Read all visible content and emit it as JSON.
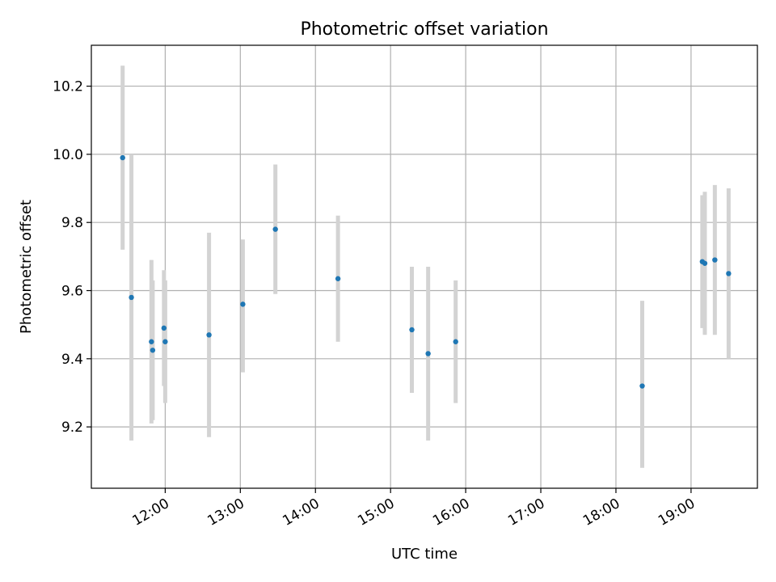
{
  "chart_data": {
    "type": "scatter",
    "title": "Photometric offset variation",
    "xlabel": "UTC time",
    "ylabel": "Photometric offset",
    "x_unit": "UTC time of day",
    "xlim": [
      "11:01",
      "19:53"
    ],
    "ylim": [
      9.02,
      10.32
    ],
    "x_ticks": [
      "12:00",
      "13:00",
      "14:00",
      "15:00",
      "16:00",
      "17:00",
      "18:00",
      "19:00"
    ],
    "y_ticks": [
      9.2,
      9.4,
      9.6,
      9.8,
      10.0,
      10.2
    ],
    "y_tick_labels": [
      "9.2",
      "9.4",
      "9.6",
      "9.8",
      "10.0",
      "10.2"
    ],
    "grid": true,
    "x_tick_rotation": "slanted",
    "colors": {
      "marker": "#1f77b4",
      "error_bar": "#d3d3d3"
    },
    "series": [
      {
        "points": [
          {
            "x": "11:26",
            "y": 9.99,
            "err_low": 9.72,
            "err_high": 10.26
          },
          {
            "x": "11:33",
            "y": 9.58,
            "err_low": 9.16,
            "err_high": 10.0
          },
          {
            "x": "11:49",
            "y": 9.45,
            "err_low": 9.21,
            "err_high": 9.69
          },
          {
            "x": "11:50",
            "y": 9.425,
            "err_low": 9.22,
            "err_high": 9.63
          },
          {
            "x": "11:59",
            "y": 9.49,
            "err_low": 9.32,
            "err_high": 9.66
          },
          {
            "x": "12:00",
            "y": 9.45,
            "err_low": 9.27,
            "err_high": 9.63
          },
          {
            "x": "12:35",
            "y": 9.47,
            "err_low": 9.17,
            "err_high": 9.77
          },
          {
            "x": "13:02",
            "y": 9.56,
            "err_low": 9.36,
            "err_high": 9.75
          },
          {
            "x": "13:28",
            "y": 9.78,
            "err_low": 9.59,
            "err_high": 9.97
          },
          {
            "x": "14:18",
            "y": 9.635,
            "err_low": 9.45,
            "err_high": 9.82
          },
          {
            "x": "15:17",
            "y": 9.485,
            "err_low": 9.3,
            "err_high": 9.67
          },
          {
            "x": "15:30",
            "y": 9.415,
            "err_low": 9.16,
            "err_high": 9.67
          },
          {
            "x": "15:52",
            "y": 9.45,
            "err_low": 9.27,
            "err_high": 9.63
          },
          {
            "x": "18:21",
            "y": 9.32,
            "err_low": 9.08,
            "err_high": 9.57
          },
          {
            "x": "19:09",
            "y": 9.685,
            "err_low": 9.49,
            "err_high": 9.88
          },
          {
            "x": "19:11",
            "y": 9.68,
            "err_low": 9.47,
            "err_high": 9.89
          },
          {
            "x": "19:19",
            "y": 9.69,
            "err_low": 9.47,
            "err_high": 9.91
          },
          {
            "x": "19:30",
            "y": 9.65,
            "err_low": 9.4,
            "err_high": 9.9
          }
        ]
      }
    ]
  }
}
